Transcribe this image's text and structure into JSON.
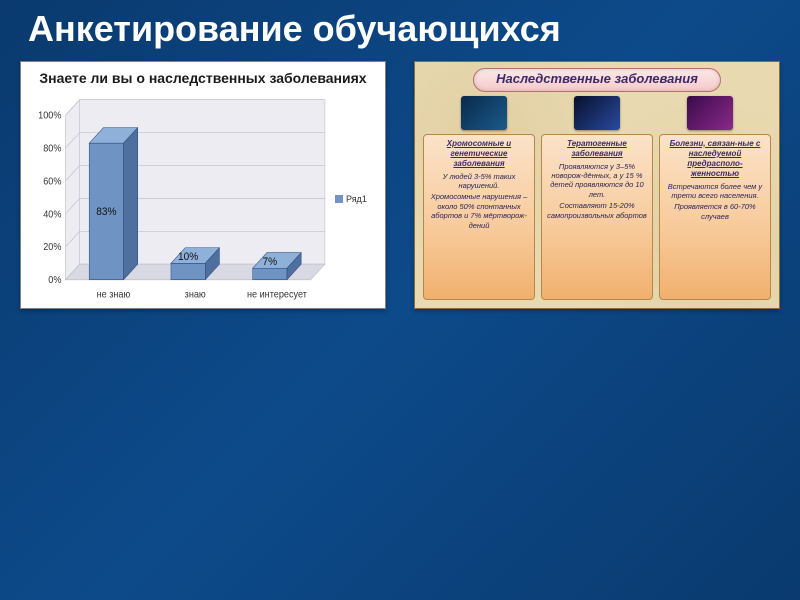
{
  "slide": {
    "title": "Анкетирование обучающихся"
  },
  "chart": {
    "type": "bar-3d",
    "title": "Знаете ли вы о наследственных заболеваниях",
    "title_fontsize": 14,
    "categories": [
      "не знаю",
      "знаю",
      "не интересует"
    ],
    "values": [
      83,
      10,
      7
    ],
    "value_labels": [
      "83%",
      "10%",
      "7%"
    ],
    "bar_color": "#6f94c4",
    "bar_top_color": "#8fb0d8",
    "bar_side_color": "#4f6f9f",
    "floor_color": "#d9d9e4",
    "wall_color": "#ececf2",
    "grid_color": "#bfbfcf",
    "ylim": [
      0,
      100
    ],
    "ytick_step": 20,
    "yticks": [
      "0%",
      "20%",
      "40%",
      "60%",
      "80%",
      "100%"
    ],
    "legend": {
      "label": "Ряд1",
      "swatch": "#6f94c4"
    },
    "axis_fontsize": 9,
    "background_color": "#ffffff"
  },
  "info": {
    "header": "Наследственные заболевания",
    "thumbs": [
      {
        "bg": "linear-gradient(135deg,#0a2a4a,#1a5a8a)"
      },
      {
        "bg": "linear-gradient(135deg,#07102a,#2a4aa0)"
      },
      {
        "bg": "linear-gradient(135deg,#3a0a4a,#8a2a8a)"
      }
    ],
    "cards": [
      {
        "title": "Хромосомные и генетические заболевания",
        "lines": [
          "У людей 3-5% таких нарушений.",
          "Хромосомные нарушения – около 50% спонтанных абортов и 7% мёртворож-дений"
        ]
      },
      {
        "title": "Тератогенные заболевания",
        "lines": [
          "Проявляются у 3–5% новорож-дённых, а у 15 % детей проявляются до 10 лет.",
          "Составляют 15-20% самопроизвольных абортов"
        ]
      },
      {
        "title": "Болезни, связан-ные с наследуемой предрасполо-женностью",
        "lines": [
          "Встречаются более чем у трети всего населения.",
          "Проявляется в 60-70% случаев"
        ]
      }
    ]
  }
}
